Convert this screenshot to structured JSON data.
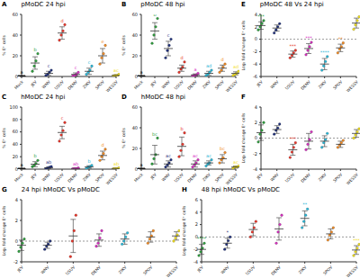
{
  "chart_data": [
    {
      "panel": "A",
      "title": "pMoDC 24 hpi",
      "type": "scatter",
      "y_label": "% E⁺ cells",
      "categories": [
        "Mock",
        "JEV",
        "WNV",
        "USUV",
        "DENV",
        "ZIKV",
        "SPOV",
        "WESSV"
      ],
      "colors": [
        "#000000",
        "#2e9e3e",
        "#1f2f7a",
        "#e8352a",
        "#d62dbf",
        "#29b6d6",
        "#f08a24",
        "#f2e01d"
      ],
      "points": [
        [
          0,
          0,
          0,
          0
        ],
        [
          5,
          10,
          15,
          22
        ],
        [
          1,
          2,
          4,
          6
        ],
        [
          35,
          40,
          44,
          50
        ],
        [
          0.5,
          1,
          2,
          4
        ],
        [
          2,
          4,
          6,
          10
        ],
        [
          12,
          18,
          22,
          30
        ],
        [
          0.5,
          1,
          1,
          2
        ]
      ],
      "mean": [
        0,
        13,
        3,
        42,
        2,
        5,
        20,
        1
      ],
      "sd": [
        0,
        6,
        2,
        6,
        1.5,
        3,
        7,
        0.5
      ],
      "annotations": [
        "a",
        "b",
        "c",
        "d",
        "c",
        "c",
        "e",
        "ac"
      ],
      "ylim": [
        0,
        60
      ],
      "yticks": [
        0,
        20,
        40,
        60
      ]
    },
    {
      "panel": "B",
      "title": "pMoDC 48 hpi",
      "type": "scatter",
      "y_label": "% E⁺ cells",
      "categories": [
        "Mock",
        "JEV",
        "WNV",
        "USUV",
        "DENV",
        "ZIKV",
        "SPOV",
        "WESSV"
      ],
      "colors": [
        "#000000",
        "#2e9e3e",
        "#1f2f7a",
        "#e8352a",
        "#d62dbf",
        "#29b6d6",
        "#f08a24",
        "#f2e01d"
      ],
      "points": [
        [
          0,
          0,
          0,
          0
        ],
        [
          32,
          40,
          48,
          56
        ],
        [
          18,
          25,
          30,
          36
        ],
        [
          4,
          7,
          9,
          14
        ],
        [
          0.5,
          1,
          1.5,
          3
        ],
        [
          1,
          2,
          4,
          6
        ],
        [
          4,
          6,
          9,
          12
        ],
        [
          1,
          2,
          3,
          5
        ]
      ],
      "mean": [
        0,
        44,
        27,
        8,
        1.5,
        3,
        8,
        3
      ],
      "sd": [
        0,
        8,
        7,
        3,
        1,
        2,
        3,
        1.5
      ],
      "annotations": [
        "a",
        "b",
        "c",
        "d",
        "a",
        "ad",
        "d",
        "ad"
      ],
      "ylim": [
        0,
        60
      ],
      "yticks": [
        0,
        20,
        40,
        60
      ]
    },
    {
      "panel": "C",
      "title": "hMoDC 24 hpi",
      "type": "scatter",
      "y_label": "% E⁺ cells",
      "categories": [
        "Mock",
        "JEV",
        "WNV",
        "USUV",
        "DENV",
        "ZIKV",
        "SPOV",
        "WESSV"
      ],
      "colors": [
        "#000000",
        "#2e9e3e",
        "#1f2f7a",
        "#e8352a",
        "#d62dbf",
        "#29b6d6",
        "#f08a24",
        "#f2e01d"
      ],
      "points": [
        [
          0,
          0,
          0,
          0
        ],
        [
          4,
          6,
          9,
          14
        ],
        [
          1,
          2,
          3,
          4
        ],
        [
          45,
          55,
          62,
          75
        ],
        [
          0.5,
          1,
          1,
          2
        ],
        [
          1,
          3,
          4,
          6
        ],
        [
          14,
          20,
          25,
          32
        ],
        [
          0.5,
          1,
          1,
          2
        ]
      ],
      "mean": [
        0,
        8,
        2,
        59,
        1,
        3.5,
        22,
        1
      ],
      "sd": [
        0,
        4,
        1,
        10,
        0.5,
        2,
        7,
        0.5
      ],
      "annotations": [
        "a",
        "b",
        "ab",
        "c",
        "ab",
        "b",
        "d",
        "ab"
      ],
      "ylim": [
        0,
        100
      ],
      "yticks": [
        0,
        20,
        40,
        60,
        80,
        100
      ]
    },
    {
      "panel": "D",
      "title": "hMoDC 48 hpi",
      "type": "scatter",
      "y_label": "% E⁺ cells",
      "categories": [
        "Mock",
        "JEV",
        "WNV",
        "USUV",
        "DENV",
        "ZIKV",
        "SPOV",
        "WESSV"
      ],
      "colors": [
        "#000000",
        "#2e9e3e",
        "#1f2f7a",
        "#e8352a",
        "#d62dbf",
        "#29b6d6",
        "#f08a24",
        "#f2e01d"
      ],
      "points": [
        [
          0,
          0,
          0,
          0
        ],
        [
          5,
          10,
          14,
          30
        ],
        [
          2,
          4,
          6,
          9
        ],
        [
          12,
          18,
          24,
          35
        ],
        [
          2,
          4,
          6,
          9
        ],
        [
          3,
          5,
          6,
          9
        ],
        [
          6,
          9,
          11,
          16
        ],
        [
          1,
          2,
          2,
          3
        ]
      ],
      "mean": [
        0,
        14,
        5,
        22,
        5,
        6,
        10,
        2
      ],
      "sd": [
        0,
        9,
        3,
        9,
        3,
        2,
        4,
        1
      ],
      "annotations": [
        "a",
        "bc",
        "ac",
        "b",
        "ac",
        "ac",
        "bc",
        "ac"
      ],
      "ylim": [
        0,
        60
      ],
      "yticks": [
        0,
        20,
        40,
        60
      ]
    },
    {
      "panel": "E",
      "title": "pMoDC 48 Vs 24 hpi",
      "type": "scatter",
      "y_label": "Log₂ fold change E⁺ cells",
      "categories": [
        "JEV",
        "WNV",
        "USUV",
        "DENV",
        "ZIKV",
        "SPOV",
        "WESSV"
      ],
      "colors": [
        "#2e9e3e",
        "#1f2f7a",
        "#e8352a",
        "#d62dbf",
        "#29b6d6",
        "#f08a24",
        "#f2e01d"
      ],
      "points": [
        [
          1.5,
          2,
          2.5,
          3
        ],
        [
          1,
          1.5,
          2,
          2.5
        ],
        [
          -3,
          -2.6,
          -2.2,
          -1.8
        ],
        [
          -2.5,
          -1.8,
          -1.2,
          -0.5
        ],
        [
          -5,
          -4.3,
          -3.6,
          -2.8
        ],
        [
          -2.2,
          -1.6,
          -1.2,
          -0.6
        ],
        [
          1.6,
          2.3,
          3,
          3.6
        ]
      ],
      "mean": [
        2.2,
        1.8,
        -2.4,
        -1.5,
        -4,
        -1.4,
        2.6
      ],
      "sd": [
        0.6,
        0.5,
        0.5,
        0.8,
        0.9,
        0.6,
        0.8
      ],
      "annotations": [
        "***",
        null,
        "***",
        "***",
        "****",
        "**",
        "***"
      ],
      "baseline": 0,
      "ylim": [
        -6,
        4
      ],
      "yticks": [
        -6,
        -4,
        -2,
        0,
        2,
        4
      ]
    },
    {
      "panel": "F",
      "type": "scatter",
      "y_label": "Log₂ fold change E⁺ cells",
      "categories": [
        "JEV",
        "WNV",
        "USUV",
        "DENV",
        "ZIKV",
        "SPOV",
        "WESSV"
      ],
      "colors": [
        "#2e9e3e",
        "#1f2f7a",
        "#e8352a",
        "#d62dbf",
        "#29b6d6",
        "#f08a24",
        "#f2e01d"
      ],
      "points": [
        [
          -0.5,
          0.5,
          1,
          2
        ],
        [
          0.5,
          1,
          1.3,
          1.8
        ],
        [
          -2.5,
          -1.8,
          -1.2,
          -0.6
        ],
        [
          -1.5,
          -0.8,
          -0.2,
          0.8
        ],
        [
          -1.2,
          -0.6,
          -0.2,
          0.6
        ],
        [
          -1.2,
          -0.9,
          -0.6,
          -0.3
        ],
        [
          0,
          0.4,
          0.8,
          1.2
        ]
      ],
      "mean": [
        0.7,
        1.1,
        -1.5,
        -0.4,
        -0.4,
        -0.8,
        0.6
      ],
      "sd": [
        1,
        0.5,
        0.7,
        1,
        0.7,
        0.4,
        0.5
      ],
      "annotations": [
        null,
        null,
        "***",
        null,
        null,
        null,
        null
      ],
      "baseline": 0,
      "ylim": [
        -4,
        4
      ],
      "yticks": [
        -4,
        -2,
        0,
        2,
        4
      ]
    },
    {
      "panel": "G",
      "title": "24 hpi hMoDC Vs pMoDC",
      "type": "scatter",
      "y_label": "Log₂ fold change E⁺ cells",
      "categories": [
        "JEV",
        "WNV",
        "USUV",
        "DENV",
        "ZIKV",
        "SPOV",
        "WESSV"
      ],
      "colors": [
        "#2e9e3e",
        "#1f2f7a",
        "#e8352a",
        "#d62dbf",
        "#29b6d6",
        "#f08a24",
        "#f2e01d"
      ],
      "points": [
        [
          -1,
          -0.6,
          -0.2,
          0.2
        ],
        [
          -0.8,
          -0.5,
          -0.3,
          0
        ],
        [
          -1.5,
          0,
          1,
          2.5
        ],
        [
          -0.5,
          -0.2,
          0.3,
          1
        ],
        [
          -0.3,
          0,
          0.4,
          0.8
        ],
        [
          -0.2,
          0.2,
          0.5,
          1
        ],
        [
          0,
          0.3,
          0.6,
          1
        ]
      ],
      "mean": [
        -0.4,
        -0.4,
        0.5,
        0.1,
        0.2,
        0.4,
        0.5
      ],
      "sd": [
        0.5,
        0.3,
        1.6,
        0.6,
        0.5,
        0.5,
        0.4
      ],
      "baseline": 0,
      "ylim": [
        -2,
        4
      ],
      "yticks": [
        -2,
        0,
        2,
        4
      ]
    },
    {
      "panel": "H",
      "title": "48 hpi hMoDC Vs pMoDC",
      "type": "scatter",
      "y_label": "Log₂ fold change E⁺ cells",
      "categories": [
        "JEV",
        "WNV",
        "USUV",
        "DENV",
        "ZIKV",
        "SPOV",
        "WESSV"
      ],
      "colors": [
        "#2e9e3e",
        "#1f2f7a",
        "#e8352a",
        "#d62dbf",
        "#29b6d6",
        "#f08a24",
        "#f2e01d"
      ],
      "points": [
        [
          -3,
          -2.4,
          -1.8,
          -1
        ],
        [
          -2,
          -1.2,
          -0.6,
          0
        ],
        [
          0,
          0.8,
          1.5,
          2.5
        ],
        [
          -1,
          0.8,
          2,
          3.5
        ],
        [
          1.5,
          2.5,
          3.5,
          4.5
        ],
        [
          -0.5,
          0.3,
          0.8,
          1.5
        ],
        [
          -3,
          -2.4,
          -1.8,
          -1.2
        ]
      ],
      "mean": [
        -2,
        -1,
        1.2,
        1.3,
        3,
        0.5,
        -2.1
      ],
      "sd": [
        0.8,
        0.8,
        1,
        1.8,
        1.2,
        0.8,
        0.7
      ],
      "annotations": [
        "****",
        "*",
        null,
        null,
        "**",
        null,
        "***"
      ],
      "baseline": 0,
      "ylim": [
        -4,
        6
      ],
      "yticks": [
        -4,
        -2,
        0,
        2,
        4,
        6
      ]
    }
  ]
}
